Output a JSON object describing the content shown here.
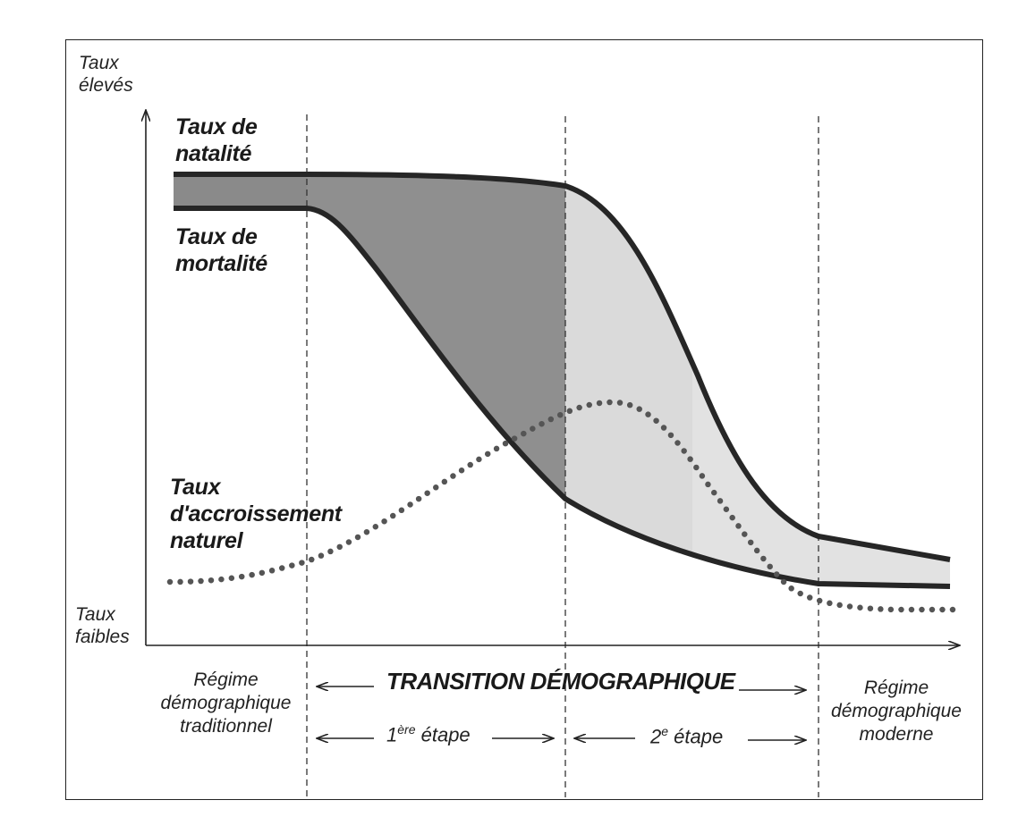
{
  "y_axis": {
    "high_line1": "Taux",
    "high_line2": "élevés",
    "low_line1": "Taux",
    "low_line2": "faibles"
  },
  "curves": {
    "birth": {
      "line1": "Taux de",
      "line2": "natalité"
    },
    "death": {
      "line1": "Taux de",
      "line2": "mortalité"
    },
    "growth": {
      "line1": "Taux",
      "line2": "d'accroissement",
      "line3": "naturel"
    }
  },
  "phases": {
    "traditional": {
      "line1": "Régime",
      "line2": "démographique",
      "line3": "traditionnel"
    },
    "transition": {
      "title": "TRANSITION DÉMOGRAPHIQUE"
    },
    "stage1": {
      "number": "1",
      "suffix": "ère",
      "word": "étape"
    },
    "stage2": {
      "number": "2",
      "suffix": "e",
      "word": "étape"
    },
    "modern": {
      "line1": "Régime",
      "line2": "démographique",
      "line3": "moderne"
    }
  },
  "colors": {
    "curve": "#262626",
    "fill_stage1": "#8f8f8f",
    "fill_stage2": "#dadada",
    "fill_traditional": "#8a8a8a",
    "fill_modern": "#e2e2e2"
  }
}
